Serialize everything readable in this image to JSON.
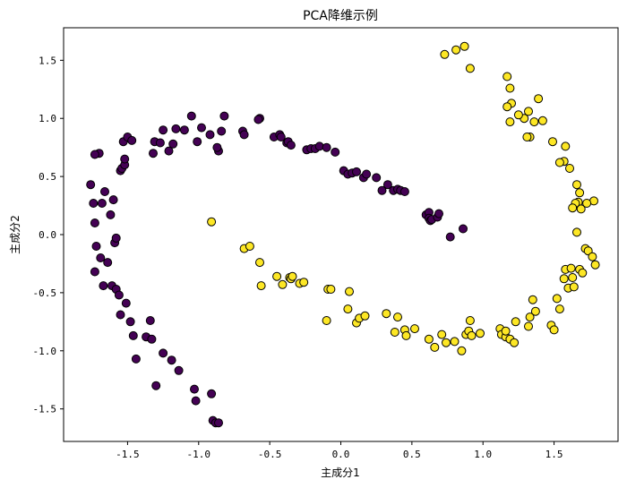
{
  "chart_data": {
    "type": "scatter",
    "title": "PCA降维示例",
    "xlabel": "主成分1",
    "ylabel": "主成分2",
    "xlim": [
      -1.95,
      1.95
    ],
    "ylim": [
      -1.78,
      1.78
    ],
    "xticks": [
      -1.5,
      -1.0,
      -0.5,
      0.0,
      0.5,
      1.0,
      1.5
    ],
    "xtick_labels": [
      "-1.5",
      "-1.0",
      "-0.5",
      "0.0",
      "0.5",
      "1.0",
      "1.5"
    ],
    "yticks": [
      -1.5,
      -1.0,
      -0.5,
      0.0,
      0.5,
      1.0,
      1.5
    ],
    "ytick_labels": [
      "-1.5",
      "-1.0",
      "-0.5",
      "0.0",
      "0.5",
      "1.0",
      "1.5"
    ],
    "grid": false,
    "series": [
      {
        "color": "#440154",
        "points": [
          [
            -1.76,
            0.43
          ],
          [
            -1.74,
            0.27
          ],
          [
            -1.73,
            0.1
          ],
          [
            -1.7,
            0.7
          ],
          [
            -1.73,
            0.69
          ],
          [
            -1.72,
            -0.1
          ],
          [
            -1.73,
            -0.32
          ],
          [
            -1.68,
            0.27
          ],
          [
            -1.69,
            -0.2
          ],
          [
            -1.67,
            -0.44
          ],
          [
            -1.66,
            0.37
          ],
          [
            -1.64,
            -0.24
          ],
          [
            -1.62,
            0.17
          ],
          [
            -1.61,
            -0.44
          ],
          [
            -1.6,
            0.3
          ],
          [
            -1.59,
            -0.07
          ],
          [
            -1.58,
            -0.03
          ],
          [
            -1.58,
            -0.47
          ],
          [
            -1.56,
            -0.52
          ],
          [
            -1.55,
            0.55
          ],
          [
            -1.54,
            0.57
          ],
          [
            -1.55,
            -0.69
          ],
          [
            -1.53,
            0.8
          ],
          [
            -1.52,
            0.6
          ],
          [
            -1.5,
            0.84
          ],
          [
            -1.51,
            -0.59
          ],
          [
            -1.52,
            0.65
          ],
          [
            -1.47,
            0.81
          ],
          [
            -1.48,
            -0.75
          ],
          [
            -1.46,
            -0.87
          ],
          [
            -1.44,
            -1.07
          ],
          [
            -1.37,
            -0.88
          ],
          [
            -1.34,
            -0.74
          ],
          [
            -1.33,
            -0.9
          ],
          [
            -1.31,
            0.8
          ],
          [
            -1.32,
            0.7
          ],
          [
            -1.3,
            -1.3
          ],
          [
            -1.27,
            0.79
          ],
          [
            -1.25,
            -1.02
          ],
          [
            -1.25,
            0.9
          ],
          [
            -1.21,
            0.72
          ],
          [
            -1.18,
            0.78
          ],
          [
            -1.19,
            -1.08
          ],
          [
            -1.16,
            0.91
          ],
          [
            -1.14,
            -1.17
          ],
          [
            -1.1,
            0.9
          ],
          [
            -1.05,
            1.02
          ],
          [
            -1.01,
            0.8
          ],
          [
            -1.03,
            -1.33
          ],
          [
            -1.02,
            -1.43
          ],
          [
            -0.98,
            0.92
          ],
          [
            -0.92,
            0.86
          ],
          [
            -0.91,
            -1.37
          ],
          [
            -0.9,
            -1.6
          ],
          [
            -0.88,
            -1.62
          ],
          [
            -0.86,
            -1.62
          ],
          [
            -0.86,
            0.72
          ],
          [
            -0.87,
            0.75
          ],
          [
            -0.84,
            0.89
          ],
          [
            -0.82,
            1.02
          ],
          [
            -0.69,
            0.89
          ],
          [
            -0.68,
            0.86
          ],
          [
            -0.57,
            1.0
          ],
          [
            -0.58,
            0.99
          ],
          [
            -0.47,
            0.84
          ],
          [
            -0.43,
            0.86
          ],
          [
            -0.42,
            0.84
          ],
          [
            -0.38,
            0.79
          ],
          [
            -0.37,
            0.8
          ],
          [
            -0.35,
            0.77
          ],
          [
            -0.24,
            0.73
          ],
          [
            -0.21,
            0.74
          ],
          [
            -0.18,
            0.74
          ],
          [
            -0.15,
            0.76
          ],
          [
            -0.1,
            0.75
          ],
          [
            -0.04,
            0.71
          ],
          [
            0.02,
            0.55
          ],
          [
            0.05,
            0.52
          ],
          [
            0.08,
            0.53
          ],
          [
            0.11,
            0.54
          ],
          [
            0.16,
            0.49
          ],
          [
            0.18,
            0.52
          ],
          [
            0.25,
            0.49
          ],
          [
            0.29,
            0.38
          ],
          [
            0.33,
            0.43
          ],
          [
            0.37,
            0.38
          ],
          [
            0.4,
            0.39
          ],
          [
            0.42,
            0.38
          ],
          [
            0.45,
            0.37
          ],
          [
            0.6,
            0.17
          ],
          [
            0.62,
            0.19
          ],
          [
            0.62,
            0.14
          ],
          [
            0.63,
            0.12
          ],
          [
            0.64,
            0.13
          ],
          [
            0.68,
            0.15
          ],
          [
            0.69,
            0.18
          ],
          [
            0.77,
            -0.02
          ],
          [
            0.86,
            0.05
          ]
        ]
      },
      {
        "color": "#fde725",
        "points": [
          [
            -0.91,
            0.11
          ],
          [
            -0.68,
            -0.12
          ],
          [
            -0.64,
            -0.1
          ],
          [
            -0.57,
            -0.24
          ],
          [
            -0.56,
            -0.44
          ],
          [
            -0.45,
            -0.36
          ],
          [
            -0.41,
            -0.43
          ],
          [
            -0.36,
            -0.37
          ],
          [
            -0.35,
            -0.38
          ],
          [
            -0.34,
            -0.36
          ],
          [
            -0.29,
            -0.42
          ],
          [
            -0.26,
            -0.41
          ],
          [
            -0.1,
            -0.74
          ],
          [
            -0.09,
            -0.47
          ],
          [
            -0.07,
            -0.47
          ],
          [
            0.05,
            -0.64
          ],
          [
            0.06,
            -0.49
          ],
          [
            0.11,
            -0.76
          ],
          [
            0.13,
            -0.72
          ],
          [
            0.17,
            -0.7
          ],
          [
            0.32,
            -0.68
          ],
          [
            0.38,
            -0.84
          ],
          [
            0.4,
            -0.71
          ],
          [
            0.45,
            -0.82
          ],
          [
            0.46,
            -0.87
          ],
          [
            0.52,
            -0.81
          ],
          [
            0.62,
            -0.9
          ],
          [
            0.66,
            -0.97
          ],
          [
            0.71,
            -0.86
          ],
          [
            0.74,
            -0.93
          ],
          [
            0.8,
            -0.92
          ],
          [
            0.85,
            -1.0
          ],
          [
            0.88,
            -0.86
          ],
          [
            0.9,
            -0.83
          ],
          [
            0.91,
            -0.74
          ],
          [
            0.92,
            -0.87
          ],
          [
            0.98,
            -0.85
          ],
          [
            1.12,
            -0.81
          ],
          [
            1.13,
            -0.86
          ],
          [
            1.16,
            -0.88
          ],
          [
            1.16,
            -0.83
          ],
          [
            1.19,
            -0.9
          ],
          [
            1.22,
            -0.93
          ],
          [
            1.23,
            -0.75
          ],
          [
            1.32,
            -0.79
          ],
          [
            1.33,
            -0.71
          ],
          [
            1.35,
            -0.56
          ],
          [
            1.37,
            -0.66
          ],
          [
            1.48,
            -0.78
          ],
          [
            1.5,
            -0.82
          ],
          [
            1.52,
            -0.55
          ],
          [
            1.54,
            -0.64
          ],
          [
            1.57,
            -0.38
          ],
          [
            1.58,
            -0.3
          ],
          [
            1.6,
            -0.46
          ],
          [
            1.62,
            -0.29
          ],
          [
            1.63,
            -0.37
          ],
          [
            1.64,
            -0.45
          ],
          [
            1.66,
            0.02
          ],
          [
            1.67,
            0.28
          ],
          [
            1.68,
            -0.3
          ],
          [
            1.69,
            0.22
          ],
          [
            1.7,
            -0.33
          ],
          [
            1.72,
            -0.12
          ],
          [
            1.74,
            -0.14
          ],
          [
            1.77,
            -0.19
          ],
          [
            1.79,
            -0.26
          ],
          [
            1.78,
            0.29
          ],
          [
            1.73,
            0.27
          ],
          [
            1.68,
            0.36
          ],
          [
            1.66,
            0.43
          ],
          [
            1.65,
            0.27
          ],
          [
            1.63,
            0.23
          ],
          [
            1.61,
            0.57
          ],
          [
            1.58,
            0.76
          ],
          [
            1.57,
            0.63
          ],
          [
            1.54,
            0.62
          ],
          [
            1.49,
            0.8
          ],
          [
            1.42,
            0.98
          ],
          [
            1.39,
            1.17
          ],
          [
            1.36,
            0.97
          ],
          [
            1.33,
            0.84
          ],
          [
            1.32,
            1.06
          ],
          [
            1.31,
            0.84
          ],
          [
            1.29,
            1.0
          ],
          [
            1.25,
            1.03
          ],
          [
            1.2,
            1.13
          ],
          [
            1.19,
            0.97
          ],
          [
            1.19,
            1.26
          ],
          [
            1.17,
            1.1
          ],
          [
            1.17,
            1.36
          ],
          [
            0.91,
            1.43
          ],
          [
            0.87,
            1.62
          ],
          [
            0.81,
            1.59
          ],
          [
            0.73,
            1.55
          ]
        ]
      }
    ]
  }
}
